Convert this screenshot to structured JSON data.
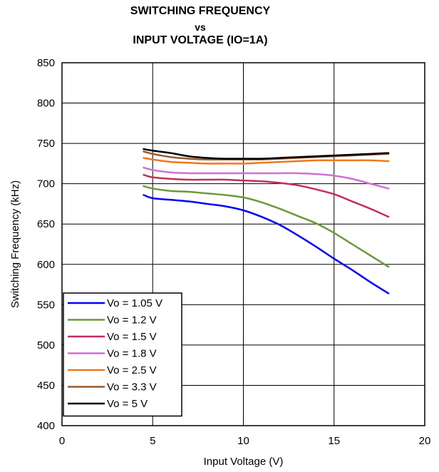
{
  "chart_data": {
    "type": "line",
    "title_lines": [
      "SWITCHING FREQUENCY",
      "vs",
      "INPUT VOLTAGE (IO=1A)"
    ],
    "xlabel": "Input Voltage (V)",
    "ylabel": "Switching Frequency (kHz)",
    "xlim": [
      0,
      20
    ],
    "ylim": [
      400,
      850
    ],
    "xticks": [
      0,
      5,
      10,
      15,
      20
    ],
    "yticks": [
      400,
      450,
      500,
      550,
      600,
      650,
      700,
      750,
      800,
      850
    ],
    "grid": true,
    "legend_position": "bottom-left",
    "series": [
      {
        "name": "Vo = 1.05 V",
        "color": "#0000ff",
        "x": [
          4.5,
          5,
          6,
          7,
          8,
          9,
          10,
          11,
          12,
          13,
          14,
          15,
          16,
          17,
          18
        ],
        "y": [
          686,
          682,
          680,
          678,
          675,
          672,
          667,
          659,
          649,
          636,
          622,
          607,
          593,
          578,
          564
        ]
      },
      {
        "name": "Vo = 1.2 V",
        "color": "#6a9a3a",
        "x": [
          4.5,
          5,
          6,
          7,
          8,
          9,
          10,
          11,
          12,
          13,
          14,
          15,
          16,
          17,
          18
        ],
        "y": [
          697,
          694,
          691,
          690,
          688,
          686,
          683,
          677,
          669,
          660,
          651,
          639,
          625,
          611,
          597
        ]
      },
      {
        "name": "Vo = 1.5 V",
        "color": "#c0305a",
        "x": [
          4.5,
          5,
          6,
          7,
          8,
          9,
          10,
          11,
          12,
          13,
          14,
          15,
          16,
          17,
          18
        ],
        "y": [
          711,
          708,
          706,
          705,
          705,
          705,
          704,
          703,
          701,
          698,
          693,
          687,
          678,
          669,
          659
        ]
      },
      {
        "name": "Vo = 1.8 V",
        "color": "#d070d0",
        "x": [
          4.5,
          5,
          6,
          7,
          8,
          9,
          10,
          11,
          12,
          13,
          14,
          15,
          16,
          17,
          18
        ],
        "y": [
          720,
          717,
          714,
          713,
          713,
          713,
          713,
          713,
          713,
          713,
          712,
          710,
          706,
          700,
          694
        ]
      },
      {
        "name": "Vo = 2.5 V",
        "color": "#f07820",
        "x": [
          4.5,
          5,
          6,
          7,
          8,
          9,
          10,
          11,
          12,
          13,
          14,
          15,
          16,
          17,
          18
        ],
        "y": [
          732,
          730,
          727,
          726,
          725,
          725,
          725,
          726,
          727,
          728,
          729,
          729,
          729,
          729,
          728
        ]
      },
      {
        "name": "Vo = 3.3 V",
        "color": "#9a5a30",
        "x": [
          4.5,
          5,
          6,
          7,
          8,
          9,
          10,
          11,
          12,
          13,
          14,
          15,
          16,
          17,
          18
        ],
        "y": [
          740,
          737,
          733,
          731,
          730,
          730,
          730,
          730,
          731,
          732,
          733,
          734,
          735,
          736,
          737
        ]
      },
      {
        "name": "Vo = 5 V",
        "color": "#000000",
        "x": [
          4.5,
          5,
          6,
          7,
          8,
          9,
          10,
          11,
          12,
          13,
          14,
          15,
          16,
          17,
          18
        ],
        "y": [
          743,
          741,
          738,
          734,
          732,
          731,
          731,
          731,
          732,
          733,
          734,
          735,
          736,
          737,
          738
        ]
      }
    ]
  }
}
